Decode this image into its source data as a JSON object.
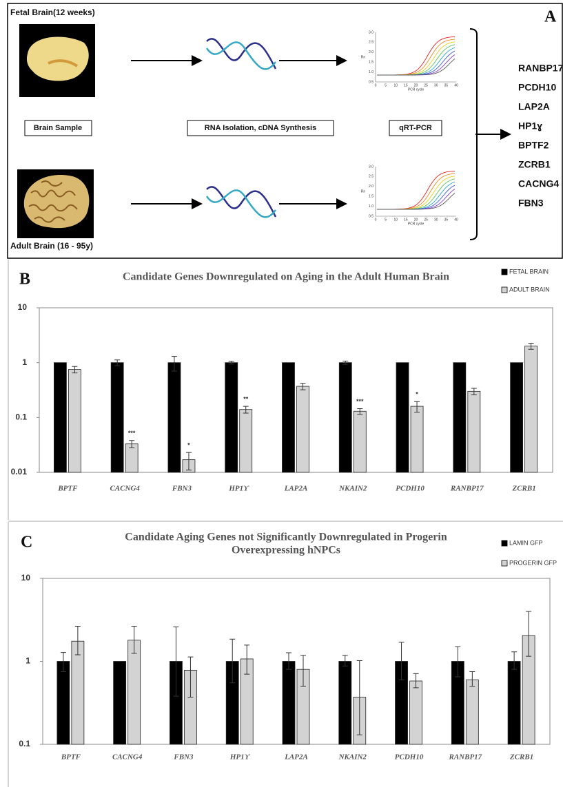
{
  "panel_a": {
    "letter": "A",
    "fetal_label": "Fetal Brain(12 weeks)",
    "adult_label": "Adult Brain (16 - 95y)",
    "steps": [
      "Brain Sample",
      "RNA Isolation, cDNA Synthesis",
      "qRT-PCR"
    ],
    "genes": [
      "RANBP17",
      "PCDH10",
      "LAP2A",
      "HP1ɣ",
      "BPTF2",
      "ZCRB1",
      "CACNG4",
      "FBN3"
    ],
    "qpcr": {
      "ylabel": "Rn",
      "xlabel": "PCR cycle",
      "yticks": [
        "3.0",
        "2.5",
        "2.0",
        "1.5",
        "1.0",
        "0.5"
      ],
      "xticks": [
        "0",
        "5",
        "10",
        "15",
        "20",
        "25",
        "30",
        "35",
        "40"
      ]
    }
  },
  "chart_data": [
    {
      "type": "bar",
      "letter": "B",
      "title": [
        "Candidate Genes Downregulated on Aging in the Adult Human Brain"
      ],
      "log_scale": true,
      "categories": [
        "BPTF",
        "CACNG4",
        "FBN3",
        "HP1ϒ",
        "LAP2A",
        "NKAIN2",
        "PCDH10",
        "RANBP17",
        "ZCRB1"
      ],
      "ylim": [
        0.01,
        10
      ],
      "yticks": [
        0.01,
        0.1,
        1,
        10
      ],
      "series": [
        {
          "name": "FETAL BRAIN",
          "color": "#000000",
          "values": [
            1,
            1,
            1,
            1,
            1,
            1,
            1,
            1,
            1
          ],
          "error_low": [
            null,
            0.12,
            0.3,
            0.06,
            null,
            0.07,
            null,
            null,
            null
          ],
          "error_high": [
            null,
            0.12,
            0.3,
            0.06,
            null,
            0.07,
            null,
            null,
            null
          ]
        },
        {
          "name": "ADULT BRAIN",
          "color": "#d3d3d3",
          "values": [
            0.75,
            0.033,
            0.017,
            0.14,
            0.37,
            0.13,
            0.16,
            0.3,
            2.0
          ],
          "error_low": [
            0.1,
            0.005,
            0.006,
            0.02,
            0.05,
            0.015,
            0.035,
            0.04,
            0.25
          ],
          "error_high": [
            0.1,
            0.005,
            0.006,
            0.02,
            0.05,
            0.015,
            0.035,
            0.04,
            0.25
          ],
          "significance": [
            null,
            "***",
            "*",
            "**",
            null,
            "***",
            "*",
            null,
            null
          ]
        }
      ]
    },
    {
      "type": "bar",
      "letter": "C",
      "title": [
        "Candidate Aging Genes not Significantly Downregulated in Progerin",
        "Overexpressing hNPCs"
      ],
      "log_scale": true,
      "categories": [
        "BPTF",
        "CACNG4",
        "FBN3",
        "HP1ϒ",
        "LAP2A",
        "NKAIN2",
        "PCDH10",
        "RANBP17",
        "ZCRB1"
      ],
      "ylim": [
        0.1,
        10
      ],
      "yticks": [
        0.1,
        1,
        10
      ],
      "series": [
        {
          "name": "LAMIN GFP",
          "color": "#000000",
          "values": [
            1,
            1,
            1,
            1,
            1,
            1,
            1,
            1,
            1
          ],
          "error_low": [
            0.25,
            null,
            0.62,
            0.45,
            0.2,
            0.12,
            0.4,
            0.35,
            0.2
          ],
          "error_high": [
            0.28,
            null,
            1.6,
            0.85,
            0.27,
            0.18,
            0.7,
            0.5,
            0.3
          ]
        },
        {
          "name": "PROGERIN GFP",
          "color": "#d3d3d3",
          "values": [
            1.75,
            1.8,
            0.78,
            1.07,
            0.8,
            0.37,
            0.58,
            0.6,
            2.05
          ],
          "error_low": [
            0.55,
            0.55,
            0.41,
            0.37,
            0.3,
            0.24,
            0.1,
            0.1,
            0.9
          ],
          "error_high": [
            0.9,
            0.85,
            0.35,
            0.5,
            0.38,
            0.65,
            0.13,
            0.15,
            1.95
          ]
        }
      ]
    }
  ]
}
